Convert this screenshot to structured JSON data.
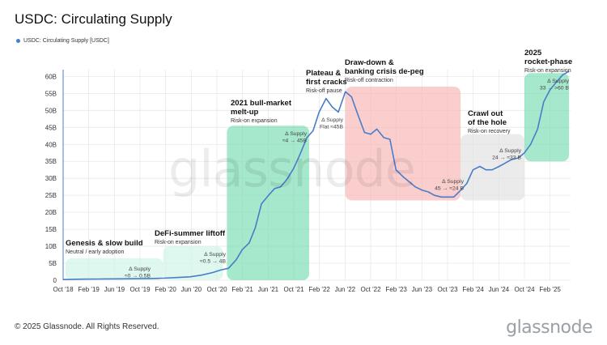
{
  "title": "USDC: Circulating Supply",
  "copyright": "© 2025 Glassnode. All Rights Reserved.",
  "brand": "glassnode",
  "watermark": "glassnode",
  "colors": {
    "line": "#4a7cc9",
    "grid": "#e8e8e8",
    "green": "#74dcb1",
    "pink": "#f9b4b4",
    "gray": "#e0e0e0",
    "mint": "#d3f4e9"
  },
  "chart_data": {
    "type": "line",
    "title": "USDC: Circulating Supply",
    "legend": "top-left",
    "grid": true,
    "xlabel": "",
    "ylabel": "",
    "x_range": [
      "Oct '18",
      "Apr '25"
    ],
    "ylim": [
      0,
      62
    ],
    "y_ticks": [
      0,
      5,
      10,
      15,
      20,
      25,
      30,
      35,
      40,
      45,
      50,
      55,
      60
    ],
    "y_tick_labels": [
      "0",
      "5B",
      "10B",
      "15B",
      "20B",
      "25B",
      "30B",
      "35B",
      "40B",
      "45B",
      "50B",
      "55B",
      "60B"
    ],
    "x_ticks": [
      {
        "label": "Oct '18",
        "x": 2018.75
      },
      {
        "label": "Feb '19",
        "x": 2019.083
      },
      {
        "label": "Jun '19",
        "x": 2019.417
      },
      {
        "label": "Oct '19",
        "x": 2019.75
      },
      {
        "label": "Feb '20",
        "x": 2020.083
      },
      {
        "label": "Jun '20",
        "x": 2020.417
      },
      {
        "label": "Oct '20",
        "x": 2020.75
      },
      {
        "label": "Feb '21",
        "x": 2021.083
      },
      {
        "label": "Jun '21",
        "x": 2021.417
      },
      {
        "label": "Oct '21",
        "x": 2021.75
      },
      {
        "label": "Feb '22",
        "x": 2022.083
      },
      {
        "label": "Jun '22",
        "x": 2022.417
      },
      {
        "label": "Oct '22",
        "x": 2022.75
      },
      {
        "label": "Feb '23",
        "x": 2023.083
      },
      {
        "label": "Jun '23",
        "x": 2023.417
      },
      {
        "label": "Oct '23",
        "x": 2023.75
      },
      {
        "label": "Feb '24",
        "x": 2024.083
      },
      {
        "label": "Jun '24",
        "x": 2024.417
      },
      {
        "label": "Oct '24",
        "x": 2024.75
      },
      {
        "label": "Feb '25",
        "x": 2025.083
      }
    ],
    "series": [
      {
        "name": "USDC: Circulating Supply [USDC]",
        "x": [
          2018.75,
          2019.0,
          2019.25,
          2019.5,
          2019.75,
          2019.9,
          2020.05,
          2020.25,
          2020.4,
          2020.55,
          2020.7,
          2020.8,
          2020.9,
          2021.0,
          2021.08,
          2021.17,
          2021.25,
          2021.33,
          2021.42,
          2021.5,
          2021.58,
          2021.67,
          2021.75,
          2021.83,
          2021.92,
          2022.0,
          2022.08,
          2022.17,
          2022.25,
          2022.33,
          2022.42,
          2022.5,
          2022.58,
          2022.67,
          2022.75,
          2022.83,
          2022.92,
          2023.0,
          2023.08,
          2023.17,
          2023.25,
          2023.33,
          2023.42,
          2023.5,
          2023.58,
          2023.67,
          2023.75,
          2023.83,
          2023.92,
          2024.0,
          2024.08,
          2024.17,
          2024.25,
          2024.33,
          2024.42,
          2024.5,
          2024.58,
          2024.67,
          2024.75,
          2024.83,
          2024.92,
          2025.0,
          2025.08,
          2025.17,
          2025.25,
          2025.33
        ],
        "values": [
          0.2,
          0.3,
          0.35,
          0.4,
          0.45,
          0.5,
          0.6,
          0.8,
          1.0,
          1.5,
          2.3,
          3.0,
          3.5,
          6.0,
          9.0,
          11.0,
          15.5,
          22.5,
          25.0,
          27.0,
          27.5,
          30.0,
          33.0,
          37.0,
          42.0,
          44.0,
          49.5,
          53.5,
          51.0,
          49.5,
          55.5,
          54.0,
          49.0,
          43.5,
          43.0,
          44.5,
          42.0,
          41.5,
          32.5,
          30.5,
          29.0,
          27.5,
          26.5,
          26.0,
          25.0,
          24.5,
          24.5,
          24.5,
          26.5,
          28.5,
          32.5,
          33.5,
          32.5,
          32.5,
          33.5,
          34.5,
          35.5,
          36.0,
          37.5,
          40.0,
          44.5,
          52.5,
          56.0,
          58.5,
          60.5,
          61.5
        ]
      }
    ],
    "regions": [
      {
        "id": "genesis",
        "x0": 2018.78,
        "x1": 2020.05,
        "y0": 0,
        "y1": 6.5,
        "color": "mint",
        "title": [
          "Genesis & slow build"
        ],
        "subtitle": "Neutral / early adoption",
        "delta": [
          "Δ Supply",
          "≈0 → 0.5B"
        ]
      },
      {
        "id": "defi",
        "x0": 2020.05,
        "x1": 2020.83,
        "y0": 0,
        "y1": 10,
        "color": "mint",
        "title": [
          "DeFi-summer liftoff"
        ],
        "subtitle": "Risk-on expansion",
        "delta": [
          "Δ Supply",
          "≈0.5 → 4B"
        ]
      },
      {
        "id": "bull",
        "x0": 2020.88,
        "x1": 2021.95,
        "y0": 0,
        "y1": 45.5,
        "color": "green",
        "title": [
          "2021 bull-market",
          "melt-up"
        ],
        "subtitle": "Risk-on expansion",
        "delta": [
          "Δ Supply",
          "≈4 → 45B"
        ]
      },
      {
        "id": "plateau",
        "x0": 2021.95,
        "x1": 2022.42,
        "y0": 43,
        "y1": 55,
        "color": "none",
        "title": [
          "Plateau &",
          "first cracks"
        ],
        "subtitle": "Risk-off pause",
        "delta": [
          "Δ Supply",
          "Flat ≈45B"
        ]
      },
      {
        "id": "drawdown",
        "x0": 2022.42,
        "x1": 2023.92,
        "y0": 23.5,
        "y1": 57,
        "color": "pink",
        "title": [
          "Draw-down &",
          "banking crisis de-peg"
        ],
        "subtitle": "Risk-off contraction",
        "delta": [
          "Δ Supply",
          "45 → ≈24 B"
        ]
      },
      {
        "id": "crawl",
        "x0": 2023.92,
        "x1": 2024.75,
        "y0": 23.5,
        "y1": 43,
        "color": "gray",
        "title": [
          "Crawl out",
          "of the hole"
        ],
        "subtitle": "Risk-on recovery",
        "delta": [
          "Δ Supply",
          "24 → ≈33 B"
        ]
      },
      {
        "id": "rocket",
        "x0": 2024.75,
        "x1": 2025.33,
        "y0": 35,
        "y1": 61,
        "color": "green",
        "title": [
          "2025",
          "rocket-phase"
        ],
        "subtitle": "Risk-on expansion",
        "delta": [
          "Δ Supply",
          "33 → >60 B"
        ]
      }
    ]
  }
}
